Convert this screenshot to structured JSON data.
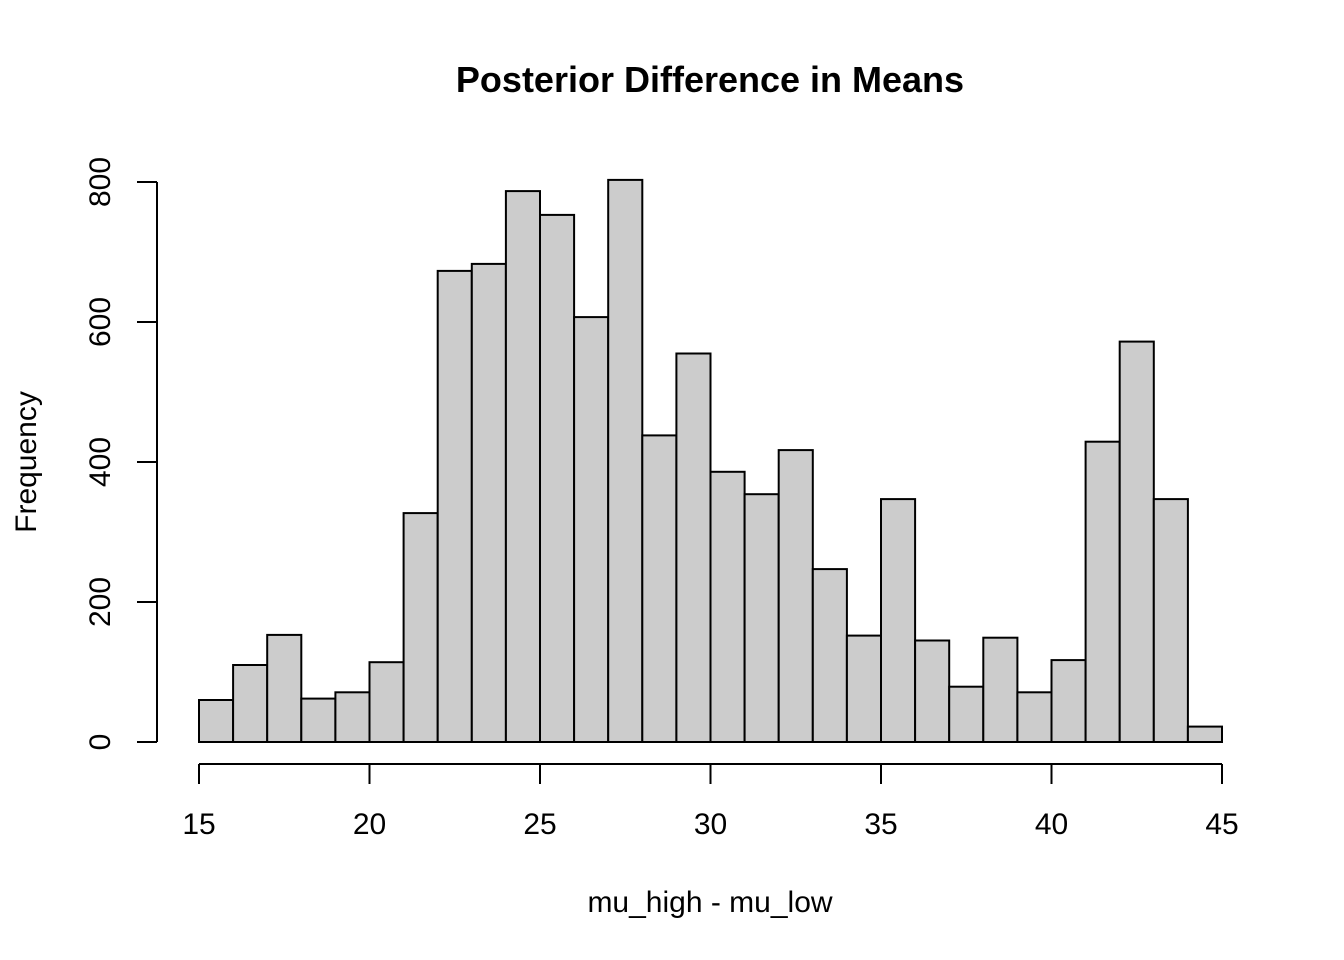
{
  "chart_data": {
    "type": "bar",
    "title": "Posterior Difference in Means",
    "xlabel": "mu_high - mu_low",
    "ylabel": "Frequency",
    "xlim": [
      15,
      45
    ],
    "ylim": [
      0,
      800
    ],
    "x_ticks": [
      15,
      20,
      25,
      30,
      35,
      40,
      45
    ],
    "y_ticks": [
      0,
      200,
      400,
      600,
      800
    ],
    "bin_width": 1,
    "bins": [
      {
        "x0": 15,
        "x1": 16,
        "value": 60
      },
      {
        "x0": 16,
        "x1": 17,
        "value": 110
      },
      {
        "x0": 17,
        "x1": 18,
        "value": 153
      },
      {
        "x0": 18,
        "x1": 19,
        "value": 62
      },
      {
        "x0": 19,
        "x1": 20,
        "value": 71
      },
      {
        "x0": 20,
        "x1": 21,
        "value": 114
      },
      {
        "x0": 21,
        "x1": 22,
        "value": 327
      },
      {
        "x0": 22,
        "x1": 23,
        "value": 673
      },
      {
        "x0": 23,
        "x1": 24,
        "value": 683
      },
      {
        "x0": 24,
        "x1": 25,
        "value": 787
      },
      {
        "x0": 25,
        "x1": 26,
        "value": 753
      },
      {
        "x0": 26,
        "x1": 27,
        "value": 607
      },
      {
        "x0": 27,
        "x1": 28,
        "value": 803
      },
      {
        "x0": 28,
        "x1": 29,
        "value": 438
      },
      {
        "x0": 29,
        "x1": 30,
        "value": 555
      },
      {
        "x0": 30,
        "x1": 31,
        "value": 386
      },
      {
        "x0": 31,
        "x1": 32,
        "value": 354
      },
      {
        "x0": 32,
        "x1": 33,
        "value": 417
      },
      {
        "x0": 33,
        "x1": 34,
        "value": 247
      },
      {
        "x0": 34,
        "x1": 35,
        "value": 152
      },
      {
        "x0": 35,
        "x1": 36,
        "value": 347
      },
      {
        "x0": 36,
        "x1": 37,
        "value": 145
      },
      {
        "x0": 37,
        "x1": 38,
        "value": 79
      },
      {
        "x0": 38,
        "x1": 39,
        "value": 149
      },
      {
        "x0": 39,
        "x1": 40,
        "value": 71
      },
      {
        "x0": 40,
        "x1": 41,
        "value": 117
      },
      {
        "x0": 41,
        "x1": 42,
        "value": 429
      },
      {
        "x0": 42,
        "x1": 43,
        "value": 572
      },
      {
        "x0": 43,
        "x1": 44,
        "value": 347
      },
      {
        "x0": 44,
        "x1": 45,
        "value": 22
      }
    ],
    "bar_fill": "#cccccc",
    "bar_stroke": "#000000",
    "grid": false,
    "legend": "none"
  }
}
